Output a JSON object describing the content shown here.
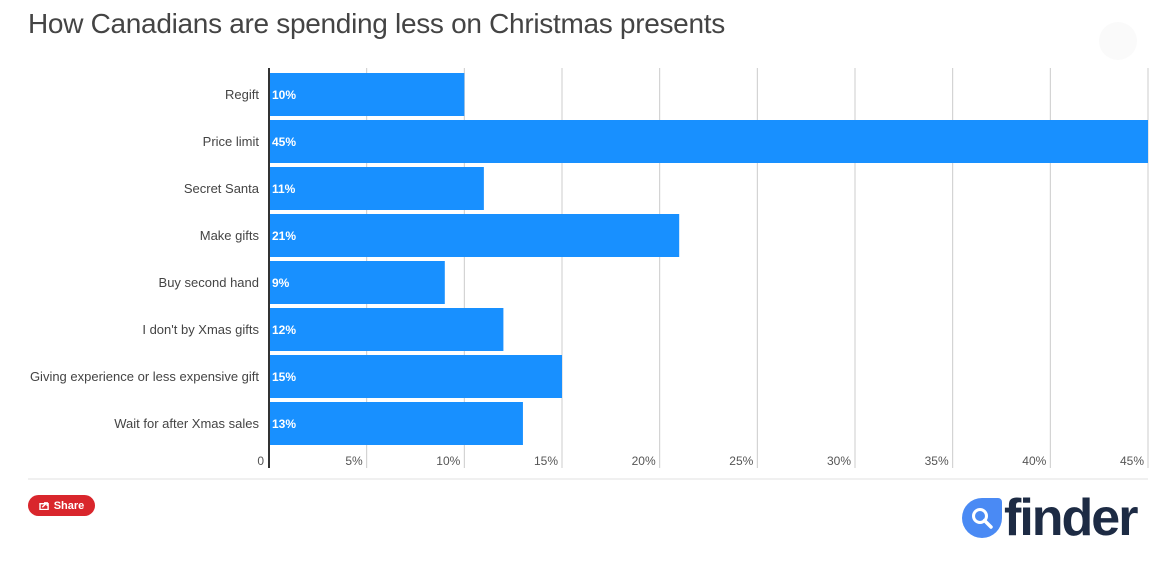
{
  "header": {
    "title": "How Canadians are spending less on Christmas presents"
  },
  "share": {
    "label": "Share"
  },
  "logo": {
    "text": "finder"
  },
  "colors": {
    "bar": "#1890ff",
    "axis": "#333333",
    "grid": "#cccccc",
    "share": "#d9262c",
    "logo_mark": "#4a8af4",
    "logo_text": "#1d2b44"
  },
  "chart_data": {
    "type": "bar",
    "orientation": "horizontal",
    "title": "How Canadians are spending less on Christmas presents",
    "xlabel": "",
    "ylabel": "",
    "categories": [
      "Regift",
      "Price limit",
      "Secret Santa",
      "Make gifts",
      "Buy second hand",
      "I don't by Xmas gifts",
      "Giving experience or less expensive gift",
      "Wait for after Xmas sales"
    ],
    "values": [
      10,
      45,
      11,
      21,
      9,
      12,
      15,
      13
    ],
    "data_labels": [
      "10%",
      "45%",
      "11%",
      "21%",
      "9%",
      "12%",
      "15%",
      "13%"
    ],
    "xlim": [
      0,
      45
    ],
    "x_ticks": [
      0,
      5,
      10,
      15,
      20,
      25,
      30,
      35,
      40,
      45
    ],
    "x_tick_labels": [
      "0",
      "5%",
      "10%",
      "15%",
      "20%",
      "25%",
      "30%",
      "35%",
      "40%",
      "45%"
    ],
    "grid": true,
    "legend": "none"
  }
}
